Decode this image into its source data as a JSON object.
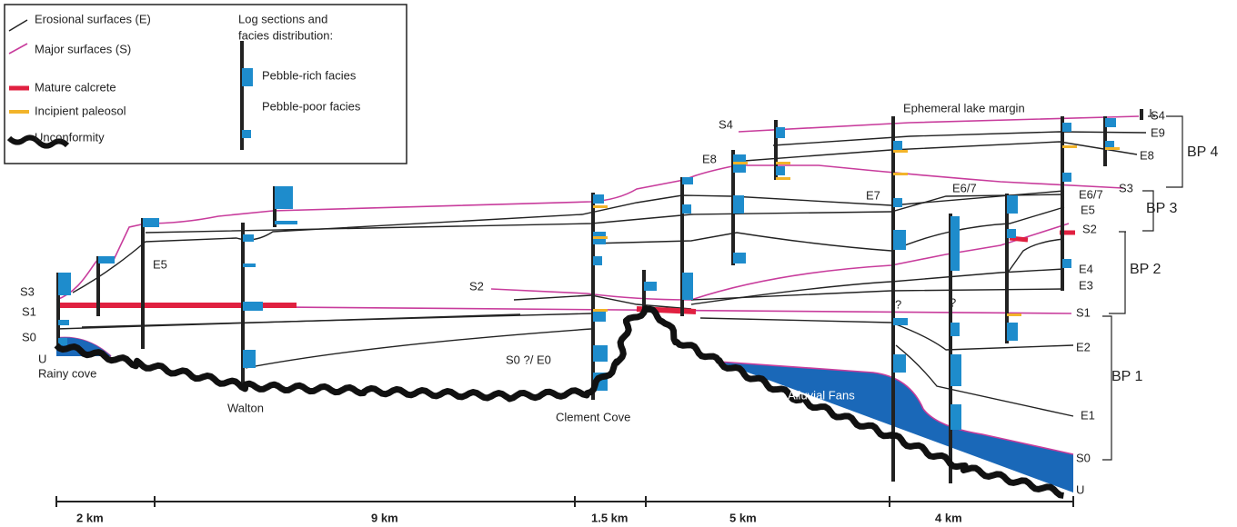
{
  "legend": {
    "erosional": "Erosional surfaces (E)",
    "major": "Major surfaces (S)",
    "calcrete": "Mature calcrete",
    "paleosol": "Incipient paleosol",
    "unconformity": "Unconformity",
    "logs_line1": "Log sections and",
    "logs_line2": "facies distribution:",
    "pebble_rich": "Pebble-rich facies",
    "pebble_poor": "Pebble-poor facies"
  },
  "localities": [
    "Rainy cove",
    "Walton",
    "Clement Cove"
  ],
  "annotations": [
    "Ephemeral lake margin",
    "Alluvial Fans",
    "S0 ?/ E0",
    "E5",
    "S2",
    "E7",
    "E6/7",
    "E8",
    "S4",
    "?",
    "?"
  ],
  "left_surfaces": [
    "S3",
    "S1",
    "S0",
    "U"
  ],
  "right_surfaces": [
    "S4",
    "E9",
    "E8",
    "S3",
    "E6/7",
    "E5",
    "S2",
    "E4",
    "E3",
    "S1",
    "E2",
    "E1",
    "S0",
    "U"
  ],
  "packages": [
    "BP 4",
    "BP 3",
    "BP 2",
    "BP 1"
  ],
  "scale": [
    "2 km",
    "9 km",
    "1.5 km",
    "5 km",
    "4 km"
  ]
}
